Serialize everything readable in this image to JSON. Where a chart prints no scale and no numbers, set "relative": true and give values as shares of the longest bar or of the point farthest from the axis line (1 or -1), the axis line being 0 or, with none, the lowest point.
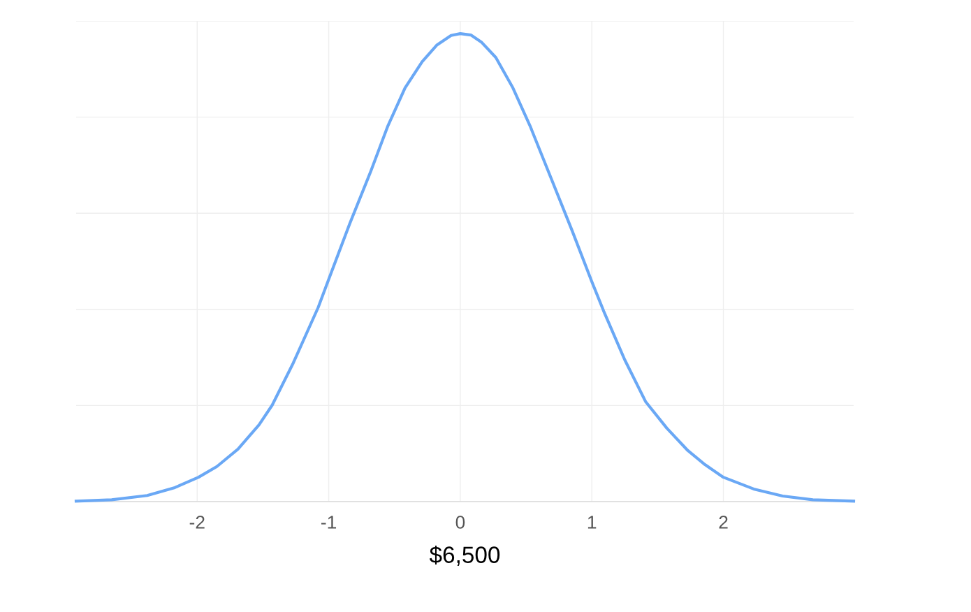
{
  "chart_data": {
    "type": "line",
    "xlabel": "$6,500",
    "relative": true,
    "grid": true,
    "marker": "none",
    "line_style": "solid",
    "xlim": [
      -2.92,
      2.99
    ],
    "xticks": [
      -2,
      -1,
      0,
      1,
      2
    ],
    "series": [
      {
        "color": "#6aa8f5",
        "x": [
          -2.92,
          -2.65,
          -2.38,
          -2.17,
          -1.99,
          -1.85,
          -1.69,
          -1.53,
          -1.43,
          -1.27,
          -1.08,
          -1.0,
          -0.84,
          -0.68,
          -0.55,
          -0.42,
          -0.29,
          -0.18,
          -0.07,
          0,
          0.08,
          0.16,
          0.27,
          0.4,
          0.53,
          0.69,
          0.85,
          1.0,
          1.09,
          1.25,
          1.41,
          1.57,
          1.73,
          1.86,
          2.0,
          2.23,
          2.45,
          2.68,
          2.99
        ],
        "values": [
          0.001,
          0.004,
          0.013,
          0.03,
          0.052,
          0.075,
          0.112,
          0.164,
          0.206,
          0.296,
          0.415,
          0.475,
          0.594,
          0.706,
          0.803,
          0.884,
          0.94,
          0.975,
          0.996,
          1.0,
          0.997,
          0.982,
          0.949,
          0.884,
          0.803,
          0.691,
          0.579,
          0.47,
          0.407,
          0.303,
          0.213,
          0.157,
          0.109,
          0.079,
          0.052,
          0.027,
          0.012,
          0.004,
          0.001
        ]
      }
    ]
  }
}
